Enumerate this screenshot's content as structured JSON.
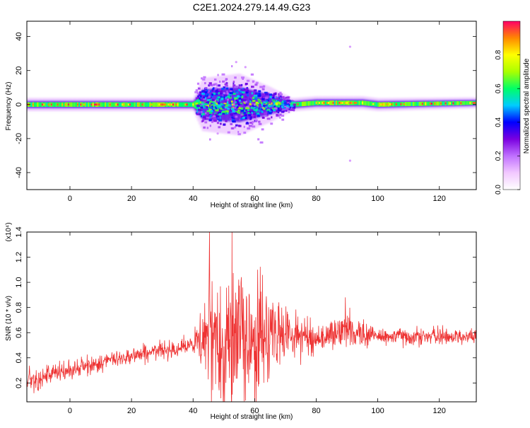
{
  "title": "C2E1.2024.279.14.49.G23",
  "chart_data": [
    {
      "type": "heatmap",
      "name": "spectrogram",
      "xlabel": "Height of straight line (km)",
      "ylabel": "Frequency (Hz)",
      "xlim": [
        -14,
        132
      ],
      "ylim": [
        -50,
        49
      ],
      "xticks": [
        0,
        20,
        40,
        60,
        80,
        100,
        120
      ],
      "yticks": [
        -40,
        -20,
        0,
        20,
        40
      ],
      "grid": false,
      "colorbar": {
        "label": "Normalized spectral amplitude",
        "range": [
          0,
          1
        ],
        "ticks": [
          0.0,
          0.2,
          0.4,
          0.6,
          0.8
        ],
        "colormap": [
          "#ffffff",
          "#f2c8ff",
          "#c070ff",
          "#7a00e0",
          "#0000ff",
          "#00ccff",
          "#00ff66",
          "#aaff00",
          "#ffff00",
          "#ff8800",
          "#ff0066"
        ]
      },
      "band": {
        "center_freq": [
          {
            "x": -14,
            "y": 0
          },
          {
            "x": 40,
            "y": 0
          },
          {
            "x": 60,
            "y": 0
          },
          {
            "x": 73,
            "y": 0
          },
          {
            "x": 80,
            "y": 1
          },
          {
            "x": 95,
            "y": 1
          },
          {
            "x": 100,
            "y": 0
          },
          {
            "x": 132,
            "y": 1
          }
        ],
        "spread_hz": [
          {
            "x": -14,
            "y": 3
          },
          {
            "x": 40,
            "y": 3
          },
          {
            "x": 43,
            "y": 12
          },
          {
            "x": 55,
            "y": 14
          },
          {
            "x": 65,
            "y": 8
          },
          {
            "x": 72,
            "y": 3
          },
          {
            "x": 95,
            "y": 3
          },
          {
            "x": 132,
            "y": 2.5
          }
        ]
      }
    },
    {
      "type": "line",
      "name": "snr",
      "xlabel": "Height of straight line (km)",
      "ylabel": "SNR (10 * v/v)",
      "y_multiplier": "(x10⁴)",
      "xlim": [
        -14,
        132
      ],
      "ylim": [
        0.05,
        1.4
      ],
      "xticks": [
        0,
        20,
        40,
        60,
        80,
        100,
        120
      ],
      "yticks": [
        0.2,
        0.4,
        0.6,
        0.8,
        1.0,
        1.2,
        1.4
      ],
      "ytick_labels": [
        "0.2",
        "0.4",
        "0.6",
        "0.8",
        "1.0",
        "1.2",
        "1.4"
      ],
      "grid": false,
      "color": "#ee3333",
      "series": [
        {
          "envelope": [
            {
              "x": -14,
              "mean": 0.22,
              "amp": 0.08
            },
            {
              "x": 0,
              "mean": 0.3,
              "amp": 0.07
            },
            {
              "x": 20,
              "mean": 0.42,
              "amp": 0.06
            },
            {
              "x": 40,
              "mean": 0.5,
              "amp": 0.06
            },
            {
              "x": 44,
              "mean": 0.55,
              "amp": 0.35
            },
            {
              "x": 50,
              "mean": 0.55,
              "amp": 0.55
            },
            {
              "x": 60,
              "mean": 0.55,
              "amp": 0.45
            },
            {
              "x": 70,
              "mean": 0.6,
              "amp": 0.18
            },
            {
              "x": 80,
              "mean": 0.55,
              "amp": 0.1
            },
            {
              "x": 90,
              "mean": 0.62,
              "amp": 0.12
            },
            {
              "x": 100,
              "mean": 0.57,
              "amp": 0.07
            },
            {
              "x": 132,
              "mean": 0.57,
              "amp": 0.05
            }
          ],
          "peaks": [
            {
              "x": 45.3,
              "y": 1.4
            },
            {
              "x": 52.6,
              "y": 1.4
            },
            {
              "x": 61.0,
              "y": 1.1
            },
            {
              "x": 89.5,
              "y": 0.88
            },
            {
              "x": 46.0,
              "y": 0.05
            },
            {
              "x": 60.5,
              "y": 0.05
            }
          ]
        }
      ]
    }
  ]
}
